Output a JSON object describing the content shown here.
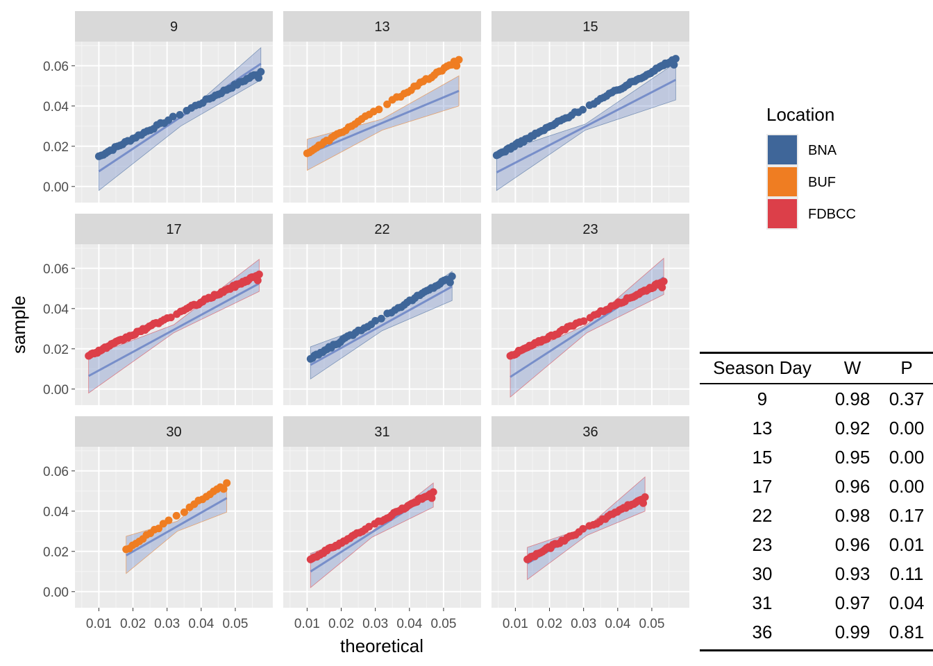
{
  "chart_data": {
    "type": "scatter",
    "title": "",
    "xlabel": "theoretical",
    "ylabel": "sample",
    "xlim": [
      0.003,
      0.061
    ],
    "ylim": [
      -0.008,
      0.072
    ],
    "x_ticks": [
      0.01,
      0.02,
      0.03,
      0.04,
      0.05
    ],
    "x_tick_labels": [
      "0.01",
      "0.02",
      "0.03",
      "0.04",
      "0.05"
    ],
    "y_ticks": [
      0.0,
      0.02,
      0.04,
      0.06
    ],
    "y_tick_labels": [
      "0.00",
      "0.02",
      "0.04",
      "0.06"
    ],
    "grid": true,
    "legend": {
      "title": "Location",
      "position": "right",
      "items": [
        {
          "name": "BNA",
          "color": "#3f6699"
        },
        {
          "name": "BUF",
          "color": "#ef7d22"
        },
        {
          "name": "FDBCC",
          "color": "#dc3f49"
        }
      ]
    },
    "facets": [
      {
        "label": "9",
        "location": "BNA",
        "x_range": [
          0.01,
          0.0575
        ],
        "y_range": [
          0.015,
          0.057
        ],
        "n": 55,
        "line": [
          [
            0.01,
            0.0075
          ],
          [
            0.0575,
            0.061
          ]
        ],
        "band_upper": [
          [
            0.01,
            0.016
          ],
          [
            0.034,
            0.034
          ],
          [
            0.0575,
            0.069
          ]
        ],
        "band_lower": [
          [
            0.01,
            -0.002
          ],
          [
            0.034,
            0.03
          ],
          [
            0.0575,
            0.053
          ]
        ]
      },
      {
        "label": "13",
        "location": "BUF",
        "x_range": [
          0.01,
          0.0545
        ],
        "y_range": [
          0.0165,
          0.063
        ],
        "n": 50,
        "line": [
          [
            0.01,
            0.016
          ],
          [
            0.0545,
            0.0475
          ]
        ],
        "band_upper": [
          [
            0.01,
            0.0235
          ],
          [
            0.032,
            0.0335
          ],
          [
            0.0545,
            0.055
          ]
        ],
        "band_lower": [
          [
            0.01,
            0.008
          ],
          [
            0.032,
            0.028
          ],
          [
            0.0545,
            0.04
          ]
        ]
      },
      {
        "label": "15",
        "location": "BNA",
        "x_range": [
          0.0045,
          0.057
        ],
        "y_range": [
          0.0155,
          0.0635
        ],
        "n": 80,
        "line": [
          [
            0.0045,
            0.007
          ],
          [
            0.057,
            0.053
          ]
        ],
        "band_upper": [
          [
            0.0045,
            0.0165
          ],
          [
            0.0305,
            0.031
          ],
          [
            0.057,
            0.0615
          ]
        ],
        "band_lower": [
          [
            0.0045,
            -0.002
          ],
          [
            0.0305,
            0.028
          ],
          [
            0.057,
            0.043
          ]
        ]
      },
      {
        "label": "17",
        "location": "FDBCC",
        "x_range": [
          0.007,
          0.057
        ],
        "y_range": [
          0.0165,
          0.057
        ],
        "n": 90,
        "line": [
          [
            0.007,
            0.0065
          ],
          [
            0.057,
            0.0525
          ]
        ],
        "band_upper": [
          [
            0.007,
            0.016
          ],
          [
            0.032,
            0.032
          ],
          [
            0.057,
            0.0645
          ]
        ],
        "band_lower": [
          [
            0.007,
            -0.002
          ],
          [
            0.032,
            0.028
          ],
          [
            0.057,
            0.0485
          ]
        ]
      },
      {
        "label": "22",
        "location": "BNA",
        "x_range": [
          0.011,
          0.0525
        ],
        "y_range": [
          0.015,
          0.056
        ],
        "n": 55,
        "line": [
          [
            0.011,
            0.012
          ],
          [
            0.0525,
            0.051
          ]
        ],
        "band_upper": [
          [
            0.011,
            0.021
          ],
          [
            0.032,
            0.034
          ],
          [
            0.0525,
            0.0585
          ]
        ],
        "band_lower": [
          [
            0.011,
            0.005
          ],
          [
            0.032,
            0.029
          ],
          [
            0.0525,
            0.044
          ]
        ]
      },
      {
        "label": "23",
        "location": "FDBCC",
        "x_range": [
          0.0085,
          0.0535
        ],
        "y_range": [
          0.0165,
          0.0535
        ],
        "n": 70,
        "line": [
          [
            0.0085,
            0.006
          ],
          [
            0.0535,
            0.0555
          ]
        ],
        "band_upper": [
          [
            0.0085,
            0.015
          ],
          [
            0.031,
            0.032
          ],
          [
            0.0535,
            0.065
          ]
        ],
        "band_lower": [
          [
            0.0085,
            -0.004
          ],
          [
            0.031,
            0.028
          ],
          [
            0.0535,
            0.047
          ]
        ]
      },
      {
        "label": "30",
        "location": "BUF",
        "x_range": [
          0.018,
          0.0475
        ],
        "y_range": [
          0.021,
          0.054
        ],
        "n": 25,
        "line": [
          [
            0.018,
            0.018
          ],
          [
            0.0475,
            0.0465
          ]
        ],
        "band_upper": [
          [
            0.018,
            0.0275
          ],
          [
            0.033,
            0.035
          ],
          [
            0.0475,
            0.0545
          ]
        ],
        "band_lower": [
          [
            0.018,
            0.009
          ],
          [
            0.033,
            0.03
          ],
          [
            0.0475,
            0.0395
          ]
        ]
      },
      {
        "label": "31",
        "location": "FDBCC",
        "x_range": [
          0.011,
          0.047
        ],
        "y_range": [
          0.016,
          0.0495
        ],
        "n": 60,
        "line": [
          [
            0.011,
            0.01
          ],
          [
            0.047,
            0.049
          ]
        ],
        "band_upper": [
          [
            0.011,
            0.019
          ],
          [
            0.029,
            0.03
          ],
          [
            0.047,
            0.054
          ]
        ],
        "band_lower": [
          [
            0.011,
            0.002
          ],
          [
            0.029,
            0.027
          ],
          [
            0.047,
            0.042
          ]
        ]
      },
      {
        "label": "36",
        "location": "FDBCC",
        "x_range": [
          0.0135,
          0.048
        ],
        "y_range": [
          0.016,
          0.047
        ],
        "n": 50,
        "line": [
          [
            0.0135,
            0.014
          ],
          [
            0.048,
            0.048
          ]
        ],
        "band_upper": [
          [
            0.0135,
            0.022
          ],
          [
            0.031,
            0.032
          ],
          [
            0.048,
            0.057
          ]
        ],
        "band_lower": [
          [
            0.0135,
            0.006
          ],
          [
            0.031,
            0.028
          ],
          [
            0.048,
            0.04
          ]
        ]
      }
    ],
    "band_fill": "#5b78c0"
  },
  "stats_table": {
    "headers": [
      "Season Day",
      "W",
      "P"
    ],
    "rows": [
      [
        "9",
        "0.98",
        "0.37"
      ],
      [
        "13",
        "0.92",
        "0.00"
      ],
      [
        "15",
        "0.95",
        "0.00"
      ],
      [
        "17",
        "0.96",
        "0.00"
      ],
      [
        "22",
        "0.98",
        "0.17"
      ],
      [
        "23",
        "0.96",
        "0.01"
      ],
      [
        "30",
        "0.93",
        "0.11"
      ],
      [
        "31",
        "0.97",
        "0.04"
      ],
      [
        "36",
        "0.99",
        "0.81"
      ]
    ]
  }
}
